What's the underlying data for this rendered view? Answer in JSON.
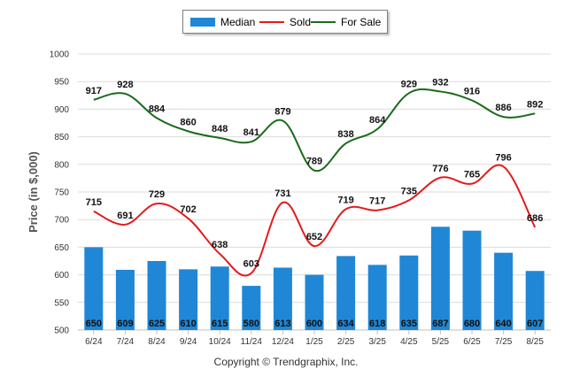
{
  "chart_data": {
    "type": "bar",
    "title": "",
    "xlabel": "",
    "ylabel": "Price (in $,000)",
    "ylim": [
      500,
      1000
    ],
    "yticks": [
      "500",
      "550",
      "600",
      "650",
      "700",
      "750",
      "800",
      "850",
      "900",
      "950",
      "1000"
    ],
    "grid": true,
    "legend_position": "top-center",
    "categories": [
      "6/24",
      "7/24",
      "8/24",
      "9/24",
      "10/24",
      "11/24",
      "12/24",
      "1/25",
      "2/25",
      "3/25",
      "4/25",
      "5/25",
      "6/25",
      "7/25",
      "8/25"
    ],
    "series": [
      {
        "name": "Median",
        "kind": "bar",
        "color": "#1f87d6",
        "values": [
          650,
          609,
          625,
          610,
          615,
          580,
          613,
          600,
          634,
          618,
          635,
          687,
          680,
          640,
          607
        ]
      },
      {
        "name": "Sold",
        "kind": "line",
        "color": "#e41a1c",
        "values": [
          715,
          691,
          729,
          702,
          638,
          603,
          731,
          652,
          719,
          717,
          735,
          776,
          765,
          796,
          686
        ]
      },
      {
        "name": "For Sale",
        "kind": "line",
        "color": "#1a6b1a",
        "values": [
          917,
          928,
          884,
          860,
          848,
          841,
          879,
          789,
          838,
          864,
          929,
          932,
          916,
          886,
          892
        ]
      }
    ]
  },
  "copyright": "Copyright © Trendgraphix, Inc."
}
